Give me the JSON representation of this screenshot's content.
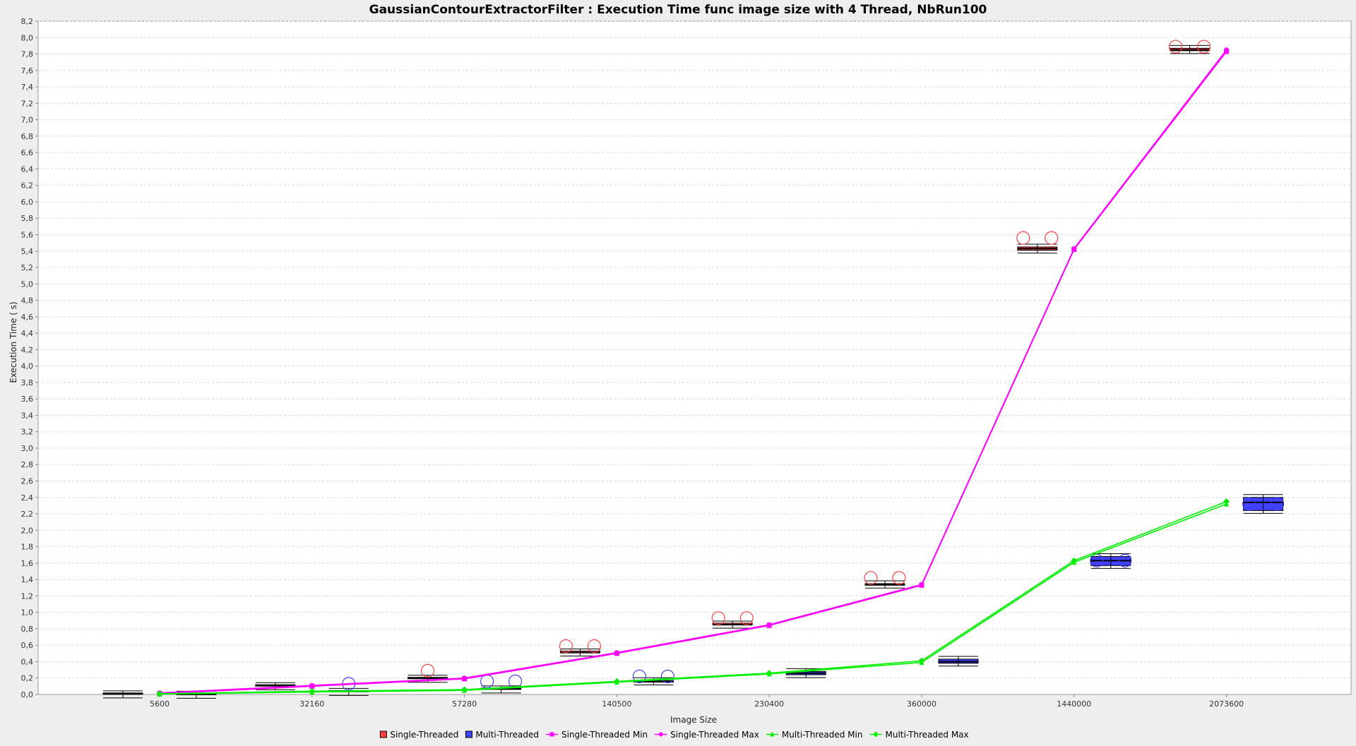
{
  "chart_data": {
    "type": "box",
    "title": "GaussianContourExtractorFilter : Execution Time func image size with 4 Thread, NbRun100",
    "xlabel": "Image Size",
    "ylabel": "Execution Time (  s)",
    "ylim": [
      0,
      8.2
    ],
    "ytick_step": 0.2,
    "grid": true,
    "legend_position": "bottom",
    "categories": [
      "5600",
      "32160",
      "57280",
      "140500",
      "230400",
      "360000",
      "1440000",
      "2073600"
    ],
    "box_series": [
      {
        "name": "Single-Threaded",
        "color": "#ff4040",
        "median": [
          0.01,
          0.11,
          0.2,
          0.51,
          0.85,
          1.34,
          5.43,
          7.85
        ],
        "q1": [
          0.01,
          0.11,
          0.2,
          0.51,
          0.85,
          1.33,
          5.41,
          7.84
        ],
        "q3": [
          0.01,
          0.11,
          0.2,
          0.52,
          0.86,
          1.35,
          5.45,
          7.87
        ],
        "outliers": [
          [],
          [],
          [
            0.29
          ],
          [
            0.59,
            0.59
          ],
          [
            0.93,
            0.93
          ],
          [
            1.42,
            1.42
          ],
          [
            5.56,
            5.56
          ],
          [
            7.89,
            7.89
          ]
        ]
      },
      {
        "name": "Multi-Threaded",
        "color": "#4040ff",
        "median": [
          0.005,
          0.04,
          0.07,
          0.16,
          0.26,
          0.4,
          1.63,
          2.34
        ],
        "q1": [
          0.005,
          0.04,
          0.06,
          0.15,
          0.24,
          0.38,
          1.57,
          2.24
        ],
        "q3": [
          0.005,
          0.04,
          0.07,
          0.17,
          0.28,
          0.43,
          1.68,
          2.4
        ],
        "outliers": [
          [],
          [
            0.13
          ],
          [
            0.16,
            0.16
          ],
          [
            0.22,
            0.22
          ],
          [],
          [],
          [
            1.63,
            1.63
          ],
          [
            2.32,
            2.32
          ]
        ]
      }
    ],
    "line_series": [
      {
        "name": "Single-Threaded Min",
        "color": "#ff00ff",
        "marker": "square",
        "values": [
          0.01,
          0.1,
          0.19,
          0.5,
          0.84,
          1.33,
          5.42,
          7.83
        ]
      },
      {
        "name": "Single-Threaded Max",
        "color": "#ff00ff",
        "marker": "circle",
        "values": [
          0.02,
          0.11,
          0.2,
          0.51,
          0.85,
          1.34,
          5.43,
          7.85
        ]
      },
      {
        "name": "Multi-Threaded Min",
        "color": "#00ee00",
        "marker": "triangle",
        "values": [
          0.005,
          0.03,
          0.05,
          0.15,
          0.25,
          0.39,
          1.61,
          2.32
        ]
      },
      {
        "name": "Multi-Threaded Max",
        "color": "#00ee00",
        "marker": "diamond",
        "values": [
          0.01,
          0.04,
          0.06,
          0.16,
          0.26,
          0.41,
          1.63,
          2.35
        ]
      }
    ]
  }
}
